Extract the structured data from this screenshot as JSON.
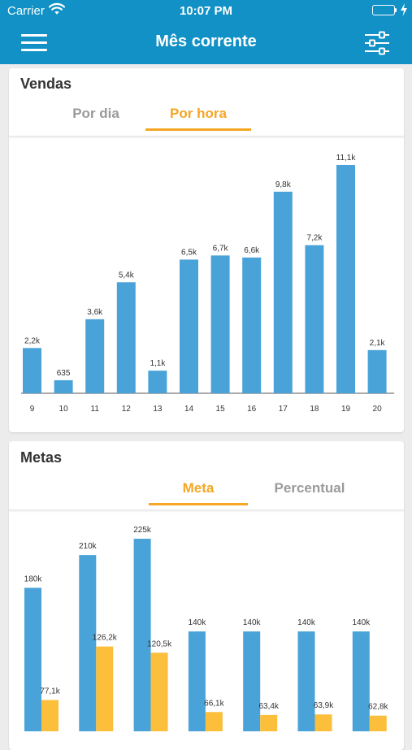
{
  "status_bar": {
    "carrier": "Carrier",
    "time": "10:07 PM"
  },
  "header": {
    "title": "Mês corrente"
  },
  "icons": {
    "menu": "hamburger-menu-icon",
    "filter": "sliders-filter-icon",
    "wifi": "wifi-icon",
    "battery": "battery-icon",
    "charging": "charging-bolt-icon"
  },
  "colors": {
    "header_bg": "#1191c5",
    "bar_blue": "#4aa3d8",
    "bar_orange": "#fbbf3c",
    "accent": "#f5a623"
  },
  "vendas": {
    "title": "Vendas",
    "tabs": [
      {
        "label": "Por dia",
        "active": false
      },
      {
        "label": "Por hora",
        "active": true
      }
    ]
  },
  "metas": {
    "title": "Metas",
    "tabs": [
      {
        "label": "Meta",
        "active": true
      },
      {
        "label": "Percentual",
        "active": false
      }
    ]
  },
  "chart_data": [
    {
      "type": "bar",
      "categories": [
        "9",
        "10",
        "11",
        "12",
        "13",
        "14",
        "15",
        "16",
        "17",
        "18",
        "19",
        "20"
      ],
      "values": [
        2200,
        635,
        3600,
        5400,
        1100,
        6500,
        6700,
        6600,
        9800,
        7200,
        11100,
        2100
      ],
      "data_labels": [
        "2,2k",
        "635",
        "3,6k",
        "5,4k",
        "1,1k",
        "6,5k",
        "6,7k",
        "6,6k",
        "9,8k",
        "7,2k",
        "11,1k",
        "2,1k"
      ],
      "xlabel": "",
      "ylabel": "",
      "ylim": [
        0,
        11100
      ],
      "grid": false
    },
    {
      "type": "bar",
      "series": [
        {
          "values": [
            180000,
            210000,
            225000,
            140000,
            140000,
            140000,
            140000
          ],
          "data_labels": [
            "180k",
            "210k",
            "225k",
            "140k",
            "140k",
            "140k",
            "140k"
          ],
          "color": "#4aa3d8"
        },
        {
          "values": [
            77100,
            126200,
            120500,
            66100,
            63400,
            63900,
            62800
          ],
          "data_labels": [
            "77,1k",
            "126,2k",
            "120,5k",
            "66,1k",
            "63,4k",
            "63,9k",
            "62,8k"
          ],
          "color": "#fbbf3c"
        }
      ],
      "xlabel": "",
      "ylabel": "",
      "grid": false
    }
  ]
}
